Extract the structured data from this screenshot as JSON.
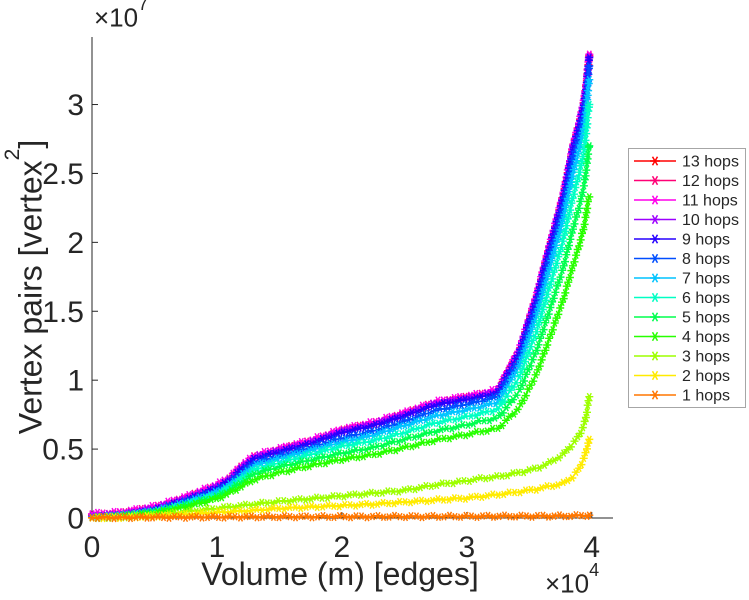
{
  "figure": {
    "background": "#ffffff",
    "axis_color": "#262626",
    "tick_label_color": "#262626",
    "legend_border_color": "#a6a6a6",
    "legend_text_color": "#000000"
  },
  "chart_data": {
    "type": "line",
    "title": "",
    "xlabel": "Volume (m) [edges]",
    "ylabel_main": "Vertex pairs [vertex",
    "ylabel_sup": "2",
    "ylabel_close": "]",
    "y_exp_prefix": "×10",
    "y_exp_sup": "7",
    "x_exp_prefix": "×10",
    "x_exp_sup": "4",
    "x_unit_multiplier": 10000,
    "y_unit_multiplier": 10000000,
    "xlim": [
      0,
      4.17
    ],
    "ylim": [
      0,
      3.49
    ],
    "grid": false,
    "marker": "asterisk",
    "legend_position": "right-outside",
    "xticks": [
      0,
      1,
      2,
      3,
      4
    ],
    "xtick_labels": [
      "0",
      "1",
      "2",
      "3",
      "4"
    ],
    "yticks": [
      0,
      0.5,
      1,
      1.5,
      2,
      2.5,
      3
    ],
    "ytick_labels": [
      "0",
      "0.5",
      "1",
      "1.5",
      "2",
      "2.5",
      "3"
    ],
    "x": [
      0,
      0.25,
      0.5,
      0.75,
      1.0,
      1.1,
      1.2,
      1.3,
      1.5,
      1.75,
      2.0,
      2.25,
      2.5,
      2.75,
      3.0,
      3.1,
      3.25,
      3.42,
      3.56,
      3.66,
      3.77,
      3.85,
      3.9,
      3.94,
      3.96,
      3.97,
      3.98
    ],
    "series": [
      {
        "label": "13 hops",
        "color": "#ff0000",
        "values": [
          0.015,
          0.03,
          0.07,
          0.14,
          0.23,
          0.28,
          0.37,
          0.44,
          0.49,
          0.55,
          0.63,
          0.68,
          0.75,
          0.83,
          0.87,
          0.885,
          0.92,
          1.21,
          1.61,
          1.96,
          2.33,
          2.69,
          2.86,
          3.03,
          3.16,
          3.26,
          3.35
        ]
      },
      {
        "label": "12 hops",
        "color": "#ff0076",
        "values": [
          0.023,
          0.038,
          0.078,
          0.148,
          0.238,
          0.288,
          0.378,
          0.448,
          0.498,
          0.558,
          0.638,
          0.688,
          0.758,
          0.838,
          0.878,
          0.893,
          0.928,
          1.218,
          1.618,
          1.968,
          2.338,
          2.698,
          2.868,
          3.038,
          3.168,
          3.268,
          3.358
        ]
      },
      {
        "label": "11 hops",
        "color": "#ff00eb",
        "values": [
          0.03,
          0.045,
          0.085,
          0.155,
          0.245,
          0.295,
          0.385,
          0.455,
          0.505,
          0.565,
          0.645,
          0.695,
          0.765,
          0.845,
          0.885,
          0.9,
          0.935,
          1.225,
          1.625,
          1.975,
          2.345,
          2.705,
          2.875,
          3.045,
          3.175,
          3.275,
          3.365
        ]
      },
      {
        "label": "10 hops",
        "color": "#9d00ff",
        "values": [
          0.013,
          0.028,
          0.068,
          0.138,
          0.228,
          0.278,
          0.368,
          0.438,
          0.488,
          0.548,
          0.628,
          0.678,
          0.748,
          0.828,
          0.868,
          0.883,
          0.918,
          1.208,
          1.608,
          1.958,
          2.328,
          2.688,
          2.858,
          3.028,
          3.158,
          3.258,
          3.348
        ]
      },
      {
        "label": "9 hops",
        "color": "#2700ff",
        "values": [
          0.005,
          0.02,
          0.06,
          0.13,
          0.22,
          0.27,
          0.36,
          0.43,
          0.48,
          0.54,
          0.62,
          0.67,
          0.74,
          0.82,
          0.86,
          0.875,
          0.91,
          1.2,
          1.6,
          1.95,
          2.32,
          2.68,
          2.85,
          3.02,
          3.15,
          3.25,
          3.34
        ]
      },
      {
        "label": "8 hops",
        "color": "#004eff",
        "values": [
          0.004,
          0.018,
          0.055,
          0.12,
          0.2,
          0.25,
          0.33,
          0.4,
          0.45,
          0.51,
          0.58,
          0.63,
          0.7,
          0.78,
          0.825,
          0.845,
          0.88,
          1.15,
          1.53,
          1.87,
          2.24,
          2.6,
          2.77,
          2.94,
          3.08,
          3.19,
          3.28
        ]
      },
      {
        "label": "7 hops",
        "color": "#00c4ff",
        "values": [
          0.004,
          0.017,
          0.05,
          0.11,
          0.19,
          0.24,
          0.31,
          0.38,
          0.43,
          0.49,
          0.55,
          0.6,
          0.67,
          0.74,
          0.785,
          0.805,
          0.84,
          1.1,
          1.47,
          1.8,
          2.16,
          2.5,
          2.67,
          2.84,
          2.99,
          3.1,
          3.18
        ]
      },
      {
        "label": "6 hops",
        "color": "#00ffc4",
        "values": [
          0.003,
          0.015,
          0.045,
          0.1,
          0.17,
          0.22,
          0.29,
          0.35,
          0.4,
          0.46,
          0.52,
          0.56,
          0.62,
          0.69,
          0.735,
          0.755,
          0.79,
          1.02,
          1.36,
          1.67,
          2.01,
          2.33,
          2.5,
          2.67,
          2.82,
          2.93,
          3.0
        ]
      },
      {
        "label": "5 hops",
        "color": "#00ff4f",
        "values": [
          0.003,
          0.013,
          0.04,
          0.09,
          0.155,
          0.2,
          0.26,
          0.32,
          0.37,
          0.42,
          0.47,
          0.51,
          0.57,
          0.63,
          0.675,
          0.7,
          0.725,
          0.92,
          1.22,
          1.5,
          1.81,
          2.1,
          2.26,
          2.42,
          2.55,
          2.64,
          2.7
        ]
      },
      {
        "label": "4 hops",
        "color": "#27ff00",
        "values": [
          0.002,
          0.012,
          0.035,
          0.08,
          0.14,
          0.18,
          0.23,
          0.28,
          0.33,
          0.38,
          0.425,
          0.46,
          0.51,
          0.565,
          0.605,
          0.625,
          0.65,
          0.8,
          1.05,
          1.3,
          1.58,
          1.83,
          1.98,
          2.12,
          2.23,
          2.3,
          2.33
        ]
      },
      {
        "label": "3 hops",
        "color": "#9dff00",
        "values": [
          0.001,
          0.008,
          0.02,
          0.045,
          0.07,
          0.08,
          0.09,
          0.1,
          0.12,
          0.14,
          0.16,
          0.18,
          0.2,
          0.24,
          0.27,
          0.285,
          0.3,
          0.33,
          0.36,
          0.4,
          0.46,
          0.54,
          0.6,
          0.68,
          0.76,
          0.83,
          0.88
        ]
      },
      {
        "label": "2 hops",
        "color": "#ffeb00",
        "values": [
          0.001,
          0.005,
          0.012,
          0.025,
          0.04,
          0.045,
          0.05,
          0.055,
          0.07,
          0.08,
          0.09,
          0.1,
          0.115,
          0.13,
          0.145,
          0.155,
          0.17,
          0.19,
          0.21,
          0.23,
          0.25,
          0.3,
          0.36,
          0.44,
          0.5,
          0.54,
          0.57
        ]
      },
      {
        "label": "1 hops",
        "color": "#ff7600",
        "values": [
          0.002,
          0.004,
          0.005,
          0.006,
          0.007,
          0.007,
          0.008,
          0.008,
          0.009,
          0.009,
          0.01,
          0.01,
          0.011,
          0.011,
          0.012,
          0.012,
          0.013,
          0.013,
          0.014,
          0.014,
          0.015,
          0.016,
          0.017,
          0.018,
          0.019,
          0.02,
          0.02
        ]
      }
    ]
  }
}
